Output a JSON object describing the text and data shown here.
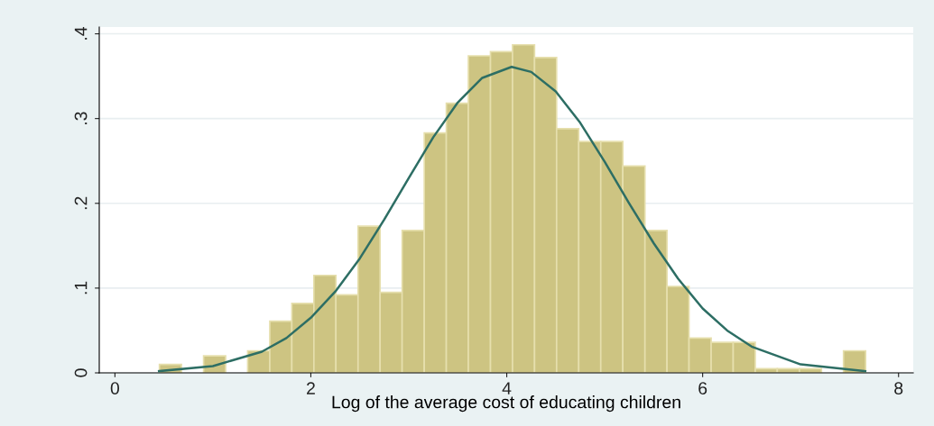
{
  "chart_data": {
    "type": "histogram",
    "xlabel": "Log of the average cost of educating children",
    "xlim": [
      -0.16,
      8.15
    ],
    "xticks": [
      0,
      2,
      4,
      6,
      8
    ],
    "ylim": [
      0,
      0.408
    ],
    "yticks": [
      {
        "value": 0,
        "label": "0"
      },
      {
        "value": 0.1,
        "label": ".1"
      },
      {
        "value": 0.2,
        "label": ".2"
      },
      {
        "value": 0.3,
        "label": ".3"
      },
      {
        "value": 0.4,
        "label": ".4"
      }
    ],
    "grid": "y",
    "series": [
      {
        "color": "#cdc482",
        "bins": [
          0.454,
          0.679,
          0.905,
          1.13,
          1.355,
          1.581,
          1.806,
          2.031,
          2.256,
          2.482,
          2.707,
          2.932,
          3.158,
          3.383,
          3.608,
          3.834,
          4.059,
          4.284,
          4.509,
          4.735,
          4.96,
          5.185,
          5.411,
          5.636,
          5.861,
          6.087,
          6.312,
          6.537,
          6.762,
          6.988,
          7.213,
          7.438,
          7.664
        ],
        "values": [
          0.01,
          0,
          0.02,
          0,
          0.026,
          0.061,
          0.082,
          0.115,
          0.092,
          0.173,
          0.095,
          0.168,
          0.283,
          0.318,
          0.374,
          0.379,
          0.387,
          0.372,
          0.288,
          0.273,
          0.273,
          0.244,
          0.168,
          0.102,
          0.041,
          0.036,
          0.036,
          0.005,
          0.005,
          0.005,
          0,
          0.026
        ]
      },
      {
        "type": "line",
        "color": "#2d6e64",
        "x": [
          0.45,
          1.0,
          1.5,
          1.75,
          2.0,
          2.25,
          2.5,
          2.75,
          3.0,
          3.25,
          3.5,
          3.75,
          4.05,
          4.25,
          4.5,
          4.75,
          5.0,
          5.25,
          5.5,
          5.75,
          6.0,
          6.25,
          6.5,
          7.0,
          7.66
        ],
        "values": [
          0.002,
          0.008,
          0.025,
          0.041,
          0.065,
          0.096,
          0.135,
          0.181,
          0.23,
          0.278,
          0.319,
          0.348,
          0.361,
          0.355,
          0.332,
          0.295,
          0.249,
          0.2,
          0.153,
          0.111,
          0.076,
          0.05,
          0.031,
          0.01,
          0.002
        ]
      }
    ]
  }
}
